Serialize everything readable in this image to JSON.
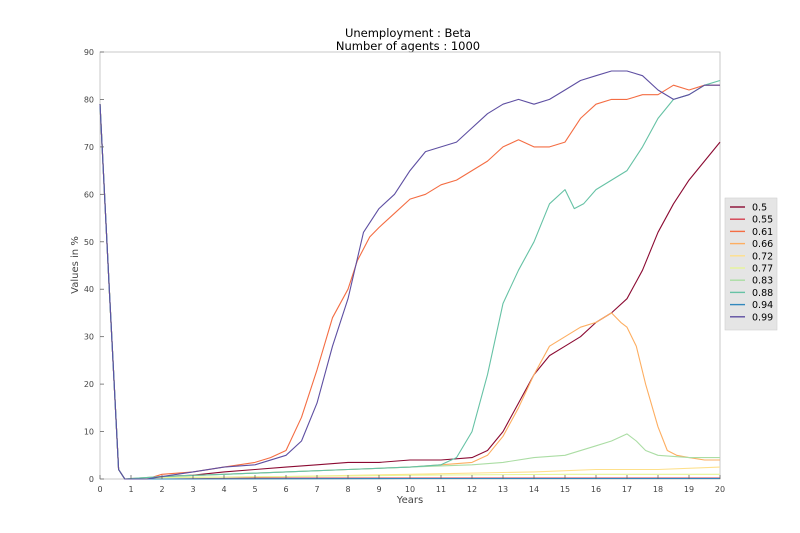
{
  "chart_data": {
    "type": "line",
    "title": "Unemployment : Beta",
    "subtitle": "Number of agents : 1000",
    "xlabel": "Years",
    "ylabel": "Values in %",
    "xlim": [
      0,
      20
    ],
    "ylim": [
      0,
      90
    ],
    "xticks": [
      0,
      1,
      2,
      3,
      4,
      5,
      6,
      7,
      8,
      9,
      10,
      11,
      12,
      13,
      14,
      15,
      16,
      17,
      18,
      19,
      20
    ],
    "yticks": [
      0,
      10,
      20,
      30,
      40,
      50,
      60,
      70,
      80,
      90
    ],
    "grid": false,
    "legend_position": "right",
    "series": [
      {
        "name": "0.5",
        "color": "#8b0a32",
        "points": [
          [
            0,
            79
          ],
          [
            0.3,
            40
          ],
          [
            0.6,
            2
          ],
          [
            0.8,
            0
          ],
          [
            1.5,
            0
          ],
          [
            2,
            0.5
          ],
          [
            3,
            0.8
          ],
          [
            4,
            1.5
          ],
          [
            5,
            2
          ],
          [
            6,
            2.5
          ],
          [
            7,
            3
          ],
          [
            8,
            3.5
          ],
          [
            9,
            3.5
          ],
          [
            10,
            4
          ],
          [
            11,
            4
          ],
          [
            12,
            4.5
          ],
          [
            12.5,
            6
          ],
          [
            13,
            10
          ],
          [
            13.5,
            16
          ],
          [
            14,
            22
          ],
          [
            14.5,
            26
          ],
          [
            15,
            28
          ],
          [
            15.5,
            30
          ],
          [
            16,
            33
          ],
          [
            16.5,
            35
          ],
          [
            17,
            38
          ],
          [
            17.5,
            44
          ],
          [
            18,
            52
          ],
          [
            18.5,
            58
          ],
          [
            19,
            63
          ],
          [
            19.5,
            67
          ],
          [
            20,
            71
          ]
        ]
      },
      {
        "name": "0.55",
        "color": "#d53e4f",
        "points": [
          [
            0,
            79
          ],
          [
            0.3,
            40
          ],
          [
            0.6,
            2
          ],
          [
            0.8,
            0
          ],
          [
            2,
            0
          ],
          [
            5,
            0.2
          ],
          [
            10,
            0.2
          ],
          [
            15,
            0.2
          ],
          [
            20,
            0.2
          ]
        ]
      },
      {
        "name": "0.61",
        "color": "#f46d43",
        "points": [
          [
            0,
            79
          ],
          [
            0.3,
            40
          ],
          [
            0.6,
            2
          ],
          [
            0.8,
            0
          ],
          [
            1.5,
            0
          ],
          [
            2,
            1
          ],
          [
            3,
            1.5
          ],
          [
            4,
            2.5
          ],
          [
            5,
            3.5
          ],
          [
            5.5,
            4.5
          ],
          [
            6,
            6
          ],
          [
            6.5,
            13
          ],
          [
            7,
            23
          ],
          [
            7.5,
            34
          ],
          [
            8,
            40
          ],
          [
            8.3,
            46
          ],
          [
            8.7,
            51
          ],
          [
            9,
            53
          ],
          [
            9.5,
            56
          ],
          [
            10,
            59
          ],
          [
            10.5,
            60
          ],
          [
            11,
            62
          ],
          [
            11.5,
            63
          ],
          [
            12,
            65
          ],
          [
            12.5,
            67
          ],
          [
            13,
            70
          ],
          [
            13.5,
            71.5
          ],
          [
            14,
            70
          ],
          [
            14.5,
            70
          ],
          [
            15,
            71
          ],
          [
            15.5,
            76
          ],
          [
            16,
            79
          ],
          [
            16.5,
            80
          ],
          [
            17,
            80
          ],
          [
            17.5,
            81
          ],
          [
            18,
            81
          ],
          [
            18.5,
            83
          ],
          [
            19,
            82
          ],
          [
            19.5,
            83
          ],
          [
            20,
            83
          ]
        ]
      },
      {
        "name": "0.66",
        "color": "#fdae61",
        "points": [
          [
            0,
            79
          ],
          [
            0.3,
            40
          ],
          [
            0.6,
            2
          ],
          [
            0.8,
            0
          ],
          [
            2,
            0.5
          ],
          [
            4,
            1
          ],
          [
            6,
            1.5
          ],
          [
            8,
            2
          ],
          [
            10,
            2.5
          ],
          [
            11,
            3
          ],
          [
            12,
            3.5
          ],
          [
            12.5,
            5
          ],
          [
            13,
            9
          ],
          [
            13.5,
            15
          ],
          [
            14,
            22
          ],
          [
            14.5,
            28
          ],
          [
            15,
            30
          ],
          [
            15.5,
            32
          ],
          [
            16,
            33
          ],
          [
            16.5,
            35
          ],
          [
            16.8,
            33
          ],
          [
            17,
            32
          ],
          [
            17.3,
            28
          ],
          [
            17.6,
            20
          ],
          [
            18,
            11
          ],
          [
            18.3,
            6
          ],
          [
            18.6,
            5
          ],
          [
            19,
            4.5
          ],
          [
            19.5,
            4
          ],
          [
            20,
            4
          ]
        ]
      },
      {
        "name": "0.72",
        "color": "#fee08b",
        "points": [
          [
            0,
            79
          ],
          [
            0.3,
            40
          ],
          [
            0.6,
            2
          ],
          [
            0.8,
            0
          ],
          [
            2,
            0.3
          ],
          [
            6,
            0.5
          ],
          [
            10,
            1
          ],
          [
            14,
            1.5
          ],
          [
            16,
            2
          ],
          [
            18,
            2
          ],
          [
            20,
            2.5
          ]
        ]
      },
      {
        "name": "0.77",
        "color": "#e6f598",
        "points": [
          [
            0,
            79
          ],
          [
            0.3,
            40
          ],
          [
            0.6,
            2
          ],
          [
            0.8,
            0
          ],
          [
            2,
            0.3
          ],
          [
            6,
            0.5
          ],
          [
            10,
            0.8
          ],
          [
            15,
            1
          ],
          [
            20,
            1
          ]
        ]
      },
      {
        "name": "0.83",
        "color": "#abdda4",
        "points": [
          [
            0,
            79
          ],
          [
            0.3,
            40
          ],
          [
            0.6,
            2
          ],
          [
            0.8,
            0
          ],
          [
            2,
            0.5
          ],
          [
            4,
            1
          ],
          [
            6,
            1.5
          ],
          [
            8,
            2
          ],
          [
            10,
            2.5
          ],
          [
            12,
            3
          ],
          [
            13,
            3.5
          ],
          [
            14,
            4.5
          ],
          [
            15,
            5
          ],
          [
            16,
            7
          ],
          [
            16.5,
            8
          ],
          [
            17,
            9.5
          ],
          [
            17.3,
            8
          ],
          [
            17.6,
            6
          ],
          [
            18,
            5
          ],
          [
            19,
            4.5
          ],
          [
            20,
            4.5
          ]
        ]
      },
      {
        "name": "0.88",
        "color": "#66c2a5",
        "points": [
          [
            0,
            79
          ],
          [
            0.3,
            40
          ],
          [
            0.6,
            2
          ],
          [
            0.8,
            0
          ],
          [
            2,
            0.5
          ],
          [
            4,
            1
          ],
          [
            6,
            1.5
          ],
          [
            8,
            2
          ],
          [
            10,
            2.5
          ],
          [
            11,
            3
          ],
          [
            11.5,
            4.5
          ],
          [
            12,
            10
          ],
          [
            12.5,
            22
          ],
          [
            13,
            37
          ],
          [
            13.5,
            44
          ],
          [
            14,
            50
          ],
          [
            14.5,
            58
          ],
          [
            15,
            61
          ],
          [
            15.3,
            57
          ],
          [
            15.6,
            58
          ],
          [
            16,
            61
          ],
          [
            16.5,
            63
          ],
          [
            17,
            65
          ],
          [
            17.5,
            70
          ],
          [
            18,
            76
          ],
          [
            18.5,
            80
          ],
          [
            19,
            81
          ],
          [
            19.5,
            83
          ],
          [
            20,
            84
          ]
        ]
      },
      {
        "name": "0.94",
        "color": "#3288bd",
        "points": [
          [
            0,
            79
          ],
          [
            0.3,
            40
          ],
          [
            0.6,
            2
          ],
          [
            0.8,
            0
          ],
          [
            2,
            0
          ],
          [
            10,
            0.1
          ],
          [
            20,
            0.1
          ]
        ]
      },
      {
        "name": "0.99",
        "color": "#5e4fa2",
        "points": [
          [
            0,
            79
          ],
          [
            0.3,
            40
          ],
          [
            0.6,
            2
          ],
          [
            0.8,
            0
          ],
          [
            1.5,
            0
          ],
          [
            2,
            0.5
          ],
          [
            3,
            1.5
          ],
          [
            4,
            2.5
          ],
          [
            5,
            3
          ],
          [
            6,
            5
          ],
          [
            6.5,
            8
          ],
          [
            7,
            16
          ],
          [
            7.5,
            28
          ],
          [
            8,
            38
          ],
          [
            8.5,
            52
          ],
          [
            9,
            57
          ],
          [
            9.5,
            60
          ],
          [
            10,
            65
          ],
          [
            10.5,
            69
          ],
          [
            11,
            70
          ],
          [
            11.5,
            71
          ],
          [
            12,
            74
          ],
          [
            12.5,
            77
          ],
          [
            13,
            79
          ],
          [
            13.5,
            80
          ],
          [
            14,
            79
          ],
          [
            14.5,
            80
          ],
          [
            15,
            82
          ],
          [
            15.5,
            84
          ],
          [
            16,
            85
          ],
          [
            16.5,
            86
          ],
          [
            17,
            86
          ],
          [
            17.5,
            85
          ],
          [
            18,
            82
          ],
          [
            18.5,
            80
          ],
          [
            19,
            81
          ],
          [
            19.5,
            83
          ],
          [
            20,
            83
          ]
        ]
      }
    ]
  }
}
